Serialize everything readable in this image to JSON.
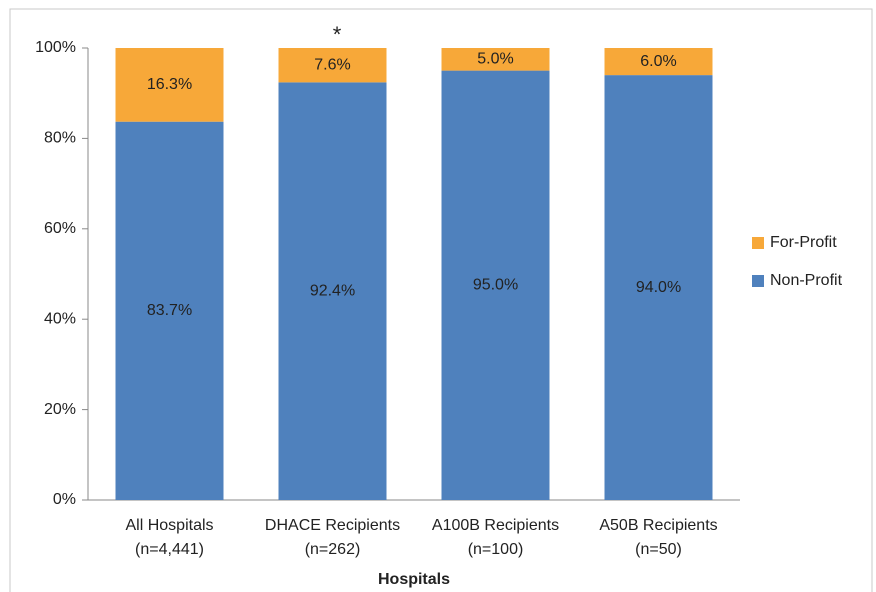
{
  "chart_data": {
    "type": "stacked_bar",
    "categories": [
      "All Hospitals\n(n=4,441)",
      "DHACE Recipients\n(n=262)",
      "A100B Recipients\n(n=100)",
      "A50B Recipients\n(n=50)"
    ],
    "x_label": "Hospitals",
    "annotation": "*",
    "series": [
      {
        "name": "Non-Profit",
        "color": "#4f81bd",
        "values": [
          83.7,
          92.4,
          95.0,
          94.0
        ],
        "value_labels": [
          "83.7%",
          "92.4%",
          "95.0%",
          "94.0%"
        ]
      },
      {
        "name": "For-Profit",
        "color": "#f7a839",
        "values": [
          16.3,
          7.6,
          5.0,
          6.0
        ],
        "value_labels": [
          "16.3%",
          "7.6%",
          "5.0%",
          "6.0%"
        ]
      }
    ],
    "ylim": [
      0,
      100
    ],
    "yticks": [
      {
        "value": 0,
        "label": "0%"
      },
      {
        "value": 20,
        "label": "20%"
      },
      {
        "value": 40,
        "label": "40%"
      },
      {
        "value": 60,
        "label": "60%"
      },
      {
        "value": 80,
        "label": "80%"
      },
      {
        "value": 100,
        "label": "100%"
      }
    ],
    "grid": false,
    "legend": "right"
  }
}
